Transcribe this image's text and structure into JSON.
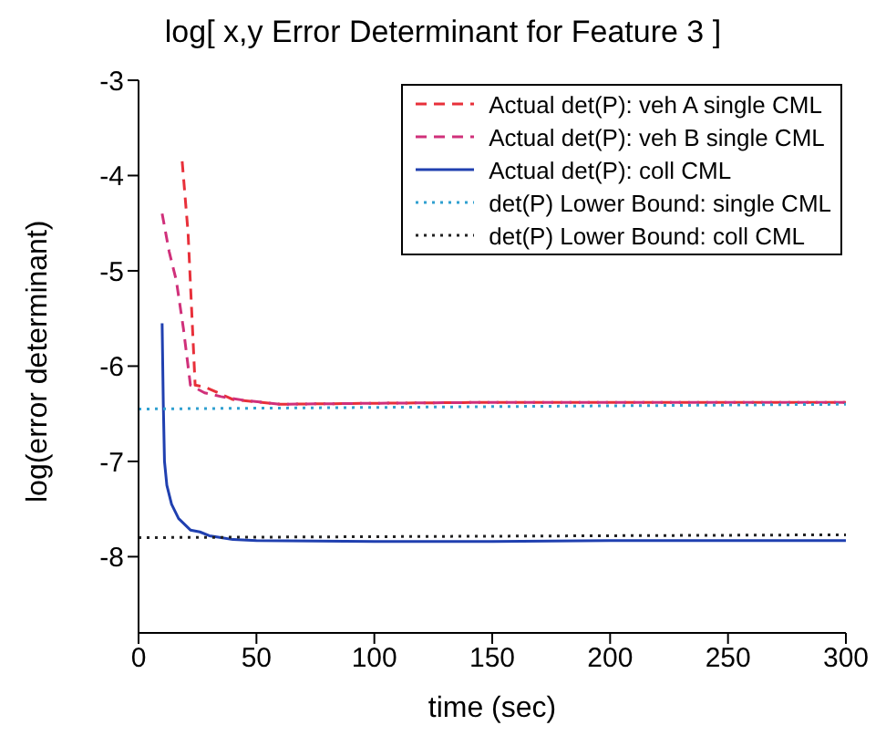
{
  "chart_data": {
    "type": "line",
    "title": "log[ x,y Error Determinant for Feature 3 ]",
    "xlabel": "time (sec)",
    "ylabel": "log(error determinant)",
    "xlim": [
      0,
      300
    ],
    "xticks": [
      0,
      50,
      100,
      150,
      200,
      250,
      300
    ],
    "ylim": [
      -8.8,
      -3
    ],
    "yticks": [
      -3,
      -4,
      -5,
      -6,
      -7,
      -8
    ],
    "legend": "top right",
    "marker": "none",
    "series": [
      {
        "name": "Actual det(P): veh A single CML",
        "color": "#e8303a",
        "line_style": "dashed",
        "x": [
          18.5,
          21,
          24,
          28,
          31,
          40,
          60,
          100,
          150,
          200,
          250,
          300
        ],
        "values": [
          -3.85,
          -4.6,
          -6.2,
          -6.22,
          -6.25,
          -6.35,
          -6.4,
          -6.39,
          -6.38,
          -6.38,
          -6.38,
          -6.38
        ]
      },
      {
        "name": "Actual det(P): veh B single CML",
        "color": "#d0307a",
        "line_style": "dashed",
        "x": [
          10,
          13,
          16,
          19,
          22,
          28,
          35,
          45,
          60,
          100,
          150,
          200,
          250,
          300
        ],
        "values": [
          -4.4,
          -4.8,
          -5.1,
          -5.6,
          -6.2,
          -6.28,
          -6.32,
          -6.36,
          -6.4,
          -6.39,
          -6.38,
          -6.38,
          -6.38,
          -6.38
        ]
      },
      {
        "name": "Actual det(P): coll CML",
        "color": "#2040b0",
        "line_style": "solid",
        "x": [
          10,
          10.5,
          11,
          12,
          14,
          17,
          22,
          26,
          30,
          35,
          40,
          50,
          100,
          150,
          200,
          250,
          300
        ],
        "values": [
          -5.55,
          -6.4,
          -7,
          -7.25,
          -7.45,
          -7.6,
          -7.72,
          -7.74,
          -7.78,
          -7.8,
          -7.82,
          -7.83,
          -7.84,
          -7.84,
          -7.83,
          -7.83,
          -7.83
        ]
      },
      {
        "name": "det(P) Lower Bound: single CML",
        "color": "#30a0d0",
        "line_style": "dotted",
        "x": [
          0,
          300
        ],
        "values": [
          -6.45,
          -6.4
        ]
      },
      {
        "name": "det(P) Lower Bound: coll CML",
        "color": "#222222",
        "line_style": "dotted",
        "x": [
          0,
          300
        ],
        "values": [
          -7.8,
          -7.77
        ]
      }
    ]
  }
}
